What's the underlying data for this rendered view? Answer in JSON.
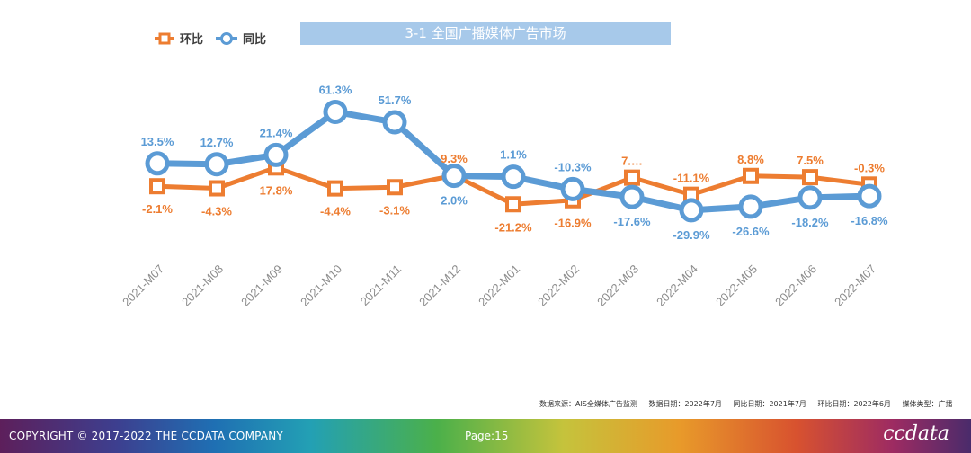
{
  "chart_data": {
    "type": "line",
    "title": "3-1 全国广播媒体广告市场",
    "categories": [
      "2021-M07",
      "2021-M08",
      "2021-M09",
      "2021-M10",
      "2021-M11",
      "2021-M12",
      "2022-M01",
      "2022-M02",
      "2022-M03",
      "2022-M04",
      "2022-M05",
      "2022-M06",
      "2022-M07"
    ],
    "series": [
      {
        "name": "环比",
        "color": "#ed7d31",
        "marker": "square",
        "values": [
          -2.1,
          -4.3,
          17.8,
          -4.4,
          -3.1,
          9.3,
          -21.2,
          -16.9,
          7.0,
          -11.1,
          8.8,
          7.5,
          -0.3
        ],
        "labels": [
          "-2.1%",
          "-4.3%",
          "17.8%",
          "-4.4%",
          "-3.1%",
          "9.3%",
          "-21.2%",
          "-16.9%",
          "7.…",
          "-11.1%",
          "8.8%",
          "7.5%",
          "-0.3%"
        ]
      },
      {
        "name": "同比",
        "color": "#5b9bd5",
        "marker": "circle",
        "values": [
          13.5,
          12.7,
          21.4,
          61.3,
          51.7,
          2.0,
          1.1,
          -10.3,
          -17.6,
          -29.9,
          -26.6,
          -18.2,
          -16.8
        ],
        "labels": [
          "13.5%",
          "12.7%",
          "21.4%",
          "61.3%",
          "51.7%",
          "2.0%",
          "1.1%",
          "-10.3%",
          "-17.6%",
          "-29.9%",
          "-26.6%",
          "-18.2%",
          "-16.8%"
        ]
      }
    ],
    "legend_position": "top-left",
    "xlabel": "",
    "ylabel": ""
  },
  "source": {
    "data_source": "数据来源：AIS全媒体广告监测",
    "data_date": "数据日期：2022年7月",
    "yoy_date": "同比日期：2021年7月",
    "mom_date": "环比日期：2022年6月",
    "media_type": "媒体类型：广播"
  },
  "footer": {
    "copyright": "COPYRIGHT © 2017-2022 THE CCDATA COMPANY",
    "page": "Page:15",
    "logo": "ccdata"
  }
}
